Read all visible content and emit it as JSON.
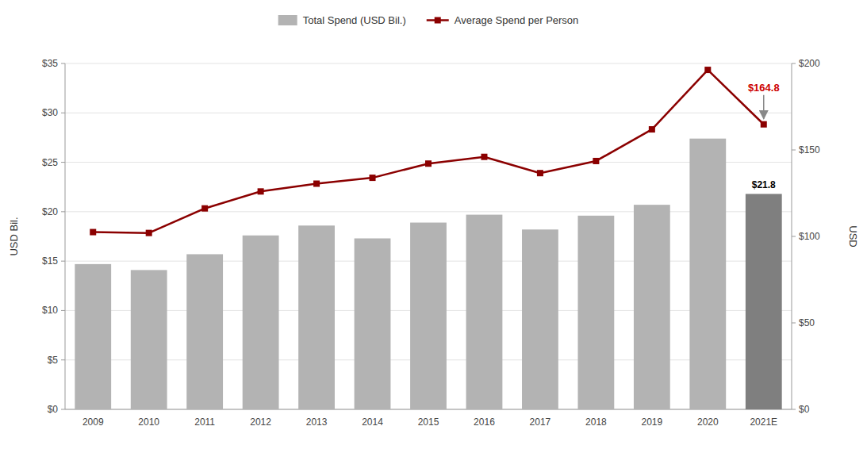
{
  "chart_data": {
    "type": "bar",
    "categories": [
      "2009",
      "2010",
      "2011",
      "2012",
      "2013",
      "2014",
      "2015",
      "2016",
      "2017",
      "2018",
      "2019",
      "2020",
      "2021E"
    ],
    "series": [
      {
        "name": "Total Spend (USD Bil.)",
        "type": "bar",
        "color": "#b3b3b3",
        "colors": [
          "#b3b3b3",
          "#b3b3b3",
          "#b3b3b3",
          "#b3b3b3",
          "#b3b3b3",
          "#b3b3b3",
          "#b3b3b3",
          "#b3b3b3",
          "#b3b3b3",
          "#b3b3b3",
          "#b3b3b3",
          "#b3b3b3",
          "#7f7f7f"
        ],
        "values": [
          14.7,
          14.1,
          15.7,
          17.6,
          18.6,
          17.3,
          18.9,
          19.7,
          18.2,
          19.6,
          20.7,
          27.4,
          21.8
        ]
      },
      {
        "name": "Average Spend per Person",
        "type": "line",
        "color": "#8b0000",
        "marker": "square",
        "axis": "y2",
        "values": [
          102.5,
          102.0,
          116.2,
          126.0,
          130.5,
          133.9,
          142.1,
          146.0,
          136.6,
          143.6,
          161.9,
          196.3,
          164.8
        ]
      }
    ],
    "ylabel": "USD Bil.",
    "y2label": "USD",
    "ylim": [
      0,
      35
    ],
    "yticks": [
      {
        "value": 0,
        "label": "$0"
      },
      {
        "value": 5,
        "label": "$5"
      },
      {
        "value": 10,
        "label": "$10"
      },
      {
        "value": 15,
        "label": "$15"
      },
      {
        "value": 20,
        "label": "$20"
      },
      {
        "value": 25,
        "label": "$25"
      },
      {
        "value": 30,
        "label": "$30"
      },
      {
        "value": 35,
        "label": "$35"
      }
    ],
    "y2lim": [
      0,
      200
    ],
    "y2ticks": [
      {
        "value": 0,
        "label": "$0"
      },
      {
        "value": 50,
        "label": "$50"
      },
      {
        "value": 100,
        "label": "$100"
      },
      {
        "value": 150,
        "label": "$150"
      },
      {
        "value": 200,
        "label": "$200"
      }
    ],
    "grid": true,
    "legend": "top",
    "annotations": [
      {
        "text": "$164.8",
        "x": "2021E",
        "y": 164.8,
        "axis": "y2",
        "color": "#cc0000",
        "arrow_color": "#888888"
      },
      {
        "text": "$21.8",
        "x": "2021E",
        "y": 21.8,
        "color": "#000000"
      }
    ]
  }
}
